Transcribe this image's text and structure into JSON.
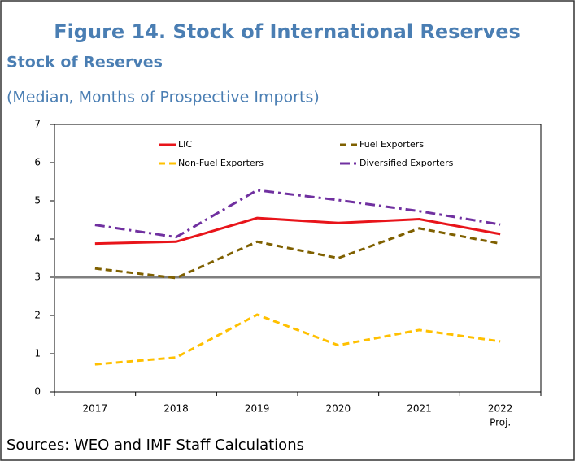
{
  "chart_data": {
    "type": "line",
    "title": "Figure 14. Stock of International Reserves",
    "subtitle": "Stock of Reserves",
    "y_label": "(Median, Months of Prospective Imports)",
    "source": "Sources: WEO and IMF Staff Calculations",
    "categories": [
      "2017",
      "2018",
      "2019",
      "2020",
      "2021",
      "2022"
    ],
    "projection_label": "Proj.",
    "ylim": [
      0,
      7
    ],
    "yticks": [
      0,
      1,
      2,
      3,
      4,
      5,
      6,
      7
    ],
    "reference_line": 3,
    "reference_color": "#7f7f7f",
    "series": [
      {
        "name": "LIC",
        "color": "#e8141a",
        "dash": "solid",
        "values": [
          3.88,
          3.93,
          4.55,
          4.42,
          4.52,
          4.13
        ]
      },
      {
        "name": "Fuel Exporters",
        "color": "#7f6000",
        "dash": "dashed",
        "values": [
          3.23,
          2.98,
          3.93,
          3.5,
          4.28,
          3.88
        ]
      },
      {
        "name": "Non-Fuel Exporters",
        "color": "#ffc000",
        "dash": "dashed",
        "values": [
          0.72,
          0.9,
          2.02,
          1.22,
          1.62,
          1.32
        ]
      },
      {
        "name": "Diversified Exporters",
        "color": "#7030a0",
        "dash": "dashdot",
        "values": [
          4.37,
          4.05,
          5.28,
          5.02,
          4.73,
          4.38
        ]
      }
    ]
  }
}
